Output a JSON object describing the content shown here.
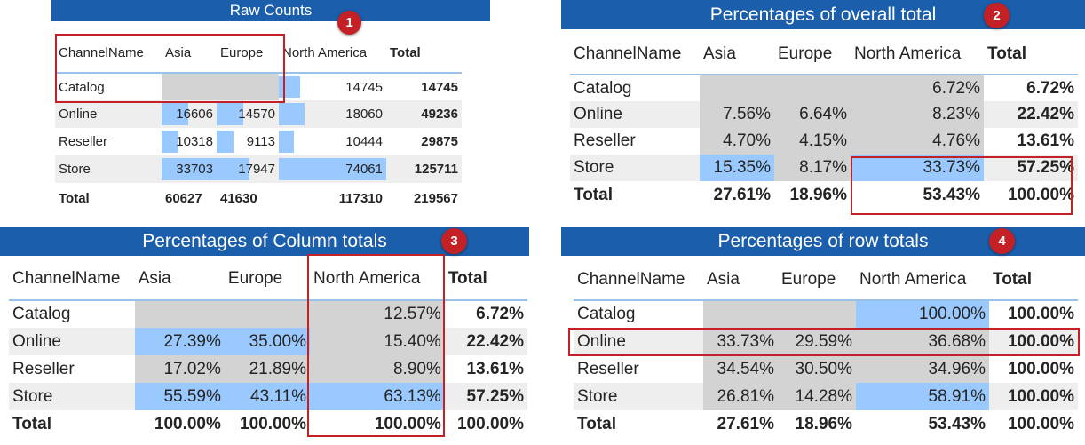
{
  "p1": {
    "title": "Raw Counts",
    "badge": "1",
    "headers": [
      "ChannelName",
      "Asia",
      "Europe",
      "North America",
      "Total"
    ],
    "rows": [
      {
        "name": "Catalog",
        "asia": "",
        "europe": "",
        "na": "14745",
        "total": "14745",
        "asia_frac": 0,
        "eu_frac": 0,
        "na_frac": 0.2
      },
      {
        "name": "Online",
        "asia": "16606",
        "europe": "14570",
        "na": "18060",
        "total": "49236",
        "asia_frac": 0.49,
        "eu_frac": 0.43,
        "na_frac": 0.24
      },
      {
        "name": "Reseller",
        "asia": "10318",
        "europe": "9113",
        "na": "10444",
        "total": "29875",
        "asia_frac": 0.31,
        "eu_frac": 0.27,
        "na_frac": 0.14
      },
      {
        "name": "Store",
        "asia": "33703",
        "europe": "17947",
        "na": "74061",
        "total": "125711",
        "asia_frac": 1.0,
        "eu_frac": 0.53,
        "na_frac": 1.0
      }
    ],
    "total_row": {
      "name": "Total",
      "asia": "60627",
      "europe": "41630",
      "na": "117310",
      "total": "219567"
    }
  },
  "p2": {
    "title": "Percentages of overall total",
    "badge": "2",
    "headers": [
      "ChannelName",
      "Asia",
      "Europe",
      "North America",
      "Total"
    ],
    "rows": [
      {
        "name": "Catalog",
        "asia": "",
        "europe": "",
        "na": "6.72%",
        "total": "6.72%"
      },
      {
        "name": "Online",
        "asia": "7.56%",
        "europe": "6.64%",
        "na": "8.23%",
        "total": "22.42%"
      },
      {
        "name": "Reseller",
        "asia": "4.70%",
        "europe": "4.15%",
        "na": "4.76%",
        "total": "13.61%"
      },
      {
        "name": "Store",
        "asia": "15.35%",
        "europe": "8.17%",
        "na": "33.73%",
        "total": "57.25%"
      }
    ],
    "total_row": {
      "name": "Total",
      "asia": "27.61%",
      "europe": "18.96%",
      "na": "53.43%",
      "total": "100.00%"
    }
  },
  "p3": {
    "title": "Percentages of Column totals",
    "badge": "3",
    "headers": [
      "ChannelName",
      "Asia",
      "Europe",
      "North America",
      "Total"
    ],
    "rows": [
      {
        "name": "Catalog",
        "asia": "",
        "europe": "",
        "na": "12.57%",
        "total": "6.72%"
      },
      {
        "name": "Online",
        "asia": "27.39%",
        "europe": "35.00%",
        "na": "15.40%",
        "total": "22.42%"
      },
      {
        "name": "Reseller",
        "asia": "17.02%",
        "europe": "21.89%",
        "na": "8.90%",
        "total": "13.61%"
      },
      {
        "name": "Store",
        "asia": "55.59%",
        "europe": "43.11%",
        "na": "63.13%",
        "total": "57.25%"
      }
    ],
    "total_row": {
      "name": "Total",
      "asia": "100.00%",
      "europe": "100.00%",
      "na": "100.00%",
      "total": "100.00%"
    }
  },
  "p4": {
    "title": "Percentages of row totals",
    "badge": "4",
    "headers": [
      "ChannelName",
      "Asia",
      "Europe",
      "North America",
      "Total"
    ],
    "rows": [
      {
        "name": "Catalog",
        "asia": "",
        "europe": "",
        "na": "100.00%",
        "total": "100.00%"
      },
      {
        "name": "Online",
        "asia": "33.73%",
        "europe": "29.59%",
        "na": "36.68%",
        "total": "100.00%"
      },
      {
        "name": "Reseller",
        "asia": "34.54%",
        "europe": "30.50%",
        "na": "34.96%",
        "total": "100.00%"
      },
      {
        "name": "Store",
        "asia": "26.81%",
        "europe": "14.28%",
        "na": "58.91%",
        "total": "100.00%"
      }
    ],
    "total_row": {
      "name": "Total",
      "asia": "27.61%",
      "europe": "18.96%",
      "na": "53.43%",
      "total": "100.00%"
    }
  }
}
